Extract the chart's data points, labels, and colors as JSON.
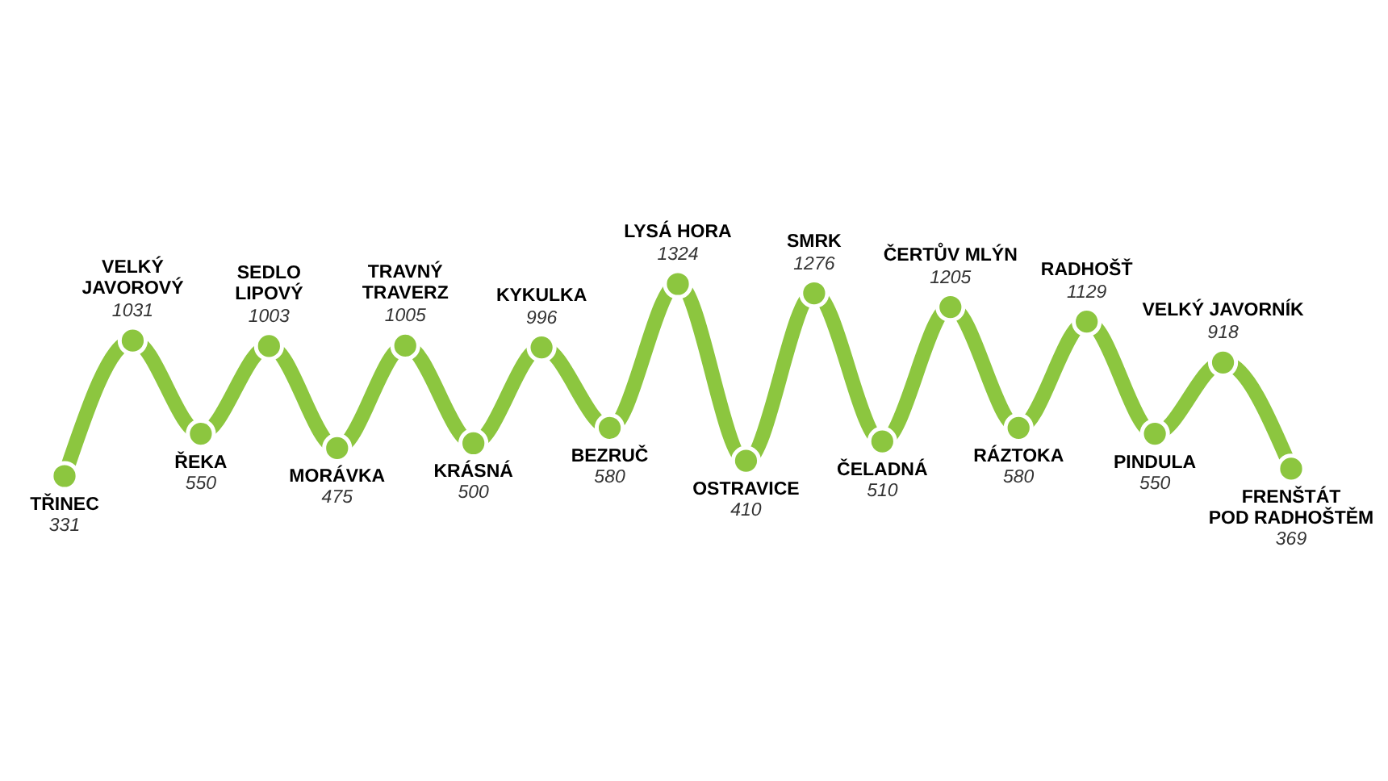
{
  "chart_data": {
    "type": "line",
    "relative": false,
    "data_labels": true,
    "marker": "circle",
    "line_style": "solid",
    "categories": [
      "TŘINEC",
      "VELKÝ\nJAVOROVÝ",
      "ŘEKA",
      "SEDLO\nLIPOVÝ",
      "MORÁVKA",
      "TRAVNÝ\nTRAVERZ",
      "KRÁSNÁ",
      "KYKULKA",
      "BEZRUČ",
      "LYSÁ HORA",
      "OSTRAVICE",
      "SMRK",
      "ČELADNÁ",
      "ČERTŮV MLÝN",
      "RÁZTOKA",
      "RADHOŠŤ",
      "PINDULA",
      "VELKÝ JAVORNÍK",
      "FRENŠTÁT\nPOD RADHOŠTĚM"
    ],
    "series": [
      {
        "color": "#8cc63f",
        "values": [
          331,
          1031,
          550,
          1003,
          475,
          1005,
          500,
          996,
          580,
          1324,
          410,
          1276,
          510,
          1205,
          580,
          1129,
          550,
          918,
          369
        ]
      }
    ]
  }
}
